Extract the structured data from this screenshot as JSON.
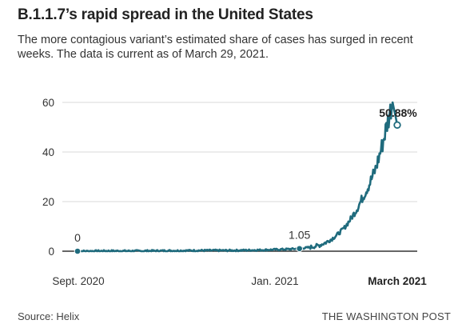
{
  "chart_data": {
    "type": "line",
    "title": "B.1.1.7’s rapid spread in the United States",
    "subtitle": "The more contagious variant’s estimated share of cases has surged in recent weeks. The data is current as of March 29, 2021.",
    "xlabel": "",
    "ylabel": "",
    "ylim": [
      0,
      60
    ],
    "yticks": [
      0,
      20,
      40,
      60
    ],
    "grid": true,
    "x_range_days_from_start": [
      0,
      206
    ],
    "x_ticks": [
      {
        "label": "Sept. 2020",
        "bold": false
      },
      {
        "label": "Jan. 2021",
        "bold": false
      },
      {
        "label": "March 2021",
        "bold": true
      }
    ],
    "series": [
      {
        "name": "",
        "color": "#1f6b7d",
        "anchors": [
          [
            0,
            0
          ],
          [
            20,
            0.1
          ],
          [
            40,
            0.1
          ],
          [
            60,
            0.2
          ],
          [
            80,
            0.3
          ],
          [
            100,
            0.3
          ],
          [
            120,
            0.5
          ],
          [
            135,
            0.8
          ],
          [
            143,
            1.05
          ],
          [
            150,
            1.6
          ],
          [
            156,
            2.4
          ],
          [
            160,
            3.5
          ],
          [
            164,
            5
          ],
          [
            168,
            7
          ],
          [
            172,
            9.5
          ],
          [
            176,
            13
          ],
          [
            180,
            17
          ],
          [
            184,
            22
          ],
          [
            188,
            27
          ],
          [
            192,
            33
          ],
          [
            196,
            42
          ],
          [
            199,
            50
          ],
          [
            201,
            55
          ],
          [
            202,
            58
          ],
          [
            203,
            60
          ],
          [
            204,
            57
          ],
          [
            205,
            54
          ],
          [
            206,
            50.88
          ]
        ]
      }
    ],
    "annotations": [
      {
        "label": "0",
        "x": 0,
        "y": 0,
        "bold": false
      },
      {
        "label": "1.05",
        "x": 143,
        "y": 1.05,
        "bold": false
      },
      {
        "label": "50.88%",
        "x": 206,
        "y": 50.88,
        "bold": true
      }
    ]
  },
  "footer": {
    "source": "Source: Helix",
    "credit": "THE WASHINGTON POST"
  }
}
